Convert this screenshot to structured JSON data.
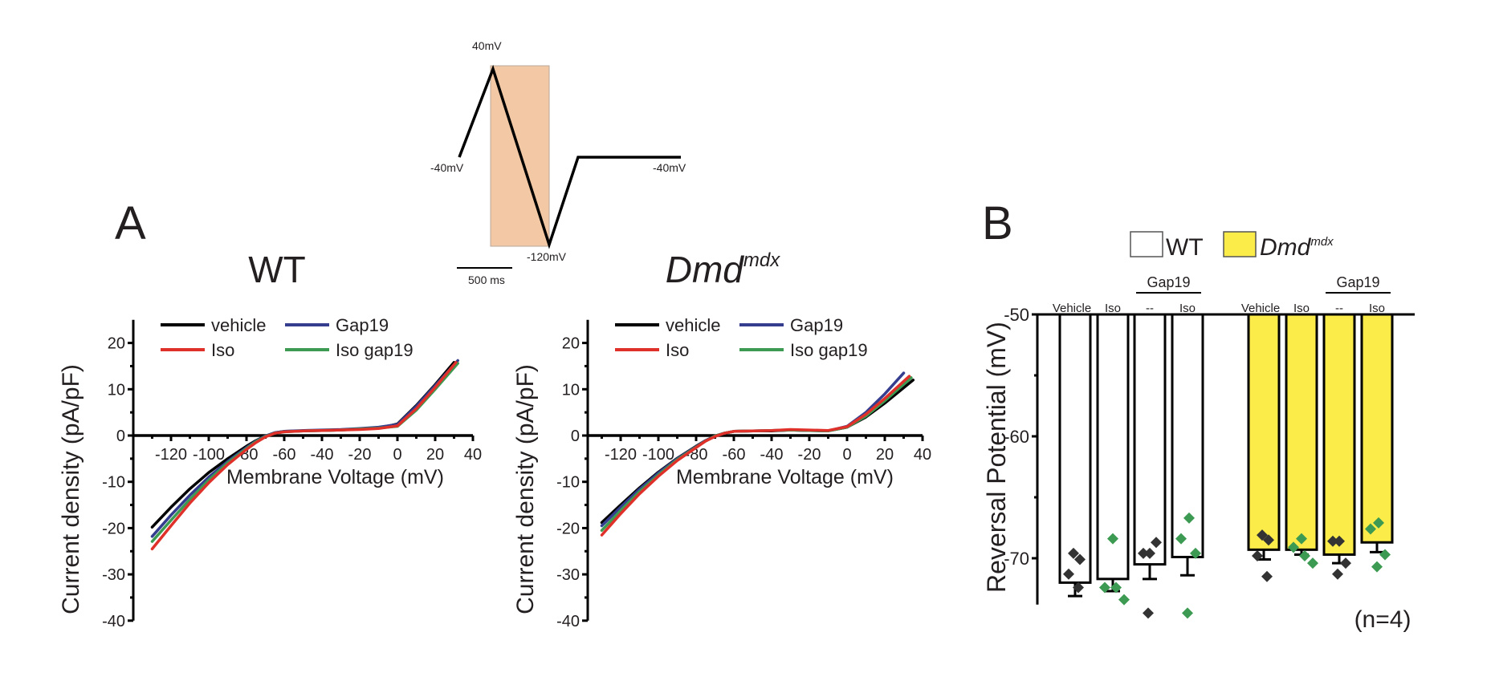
{
  "figure": {
    "panel_labels": {
      "a": "A",
      "b": "B"
    },
    "protocol": {
      "label_peak": "40mV",
      "label_start": "-40mV",
      "label_end": "-40mV",
      "label_trough": "-120mV",
      "scale_bar": "500 ms",
      "highlight_color": "#f2c9a4",
      "voltage_sequence_mV": [
        -40,
        40,
        -120,
        -40,
        -40
      ]
    }
  },
  "chart_data": [
    {
      "id": "iv_wt",
      "type": "line",
      "title": "WT",
      "xlabel": "Membrane Voltage (mV)",
      "ylabel": "Current density (pA/pF)",
      "xlim": [
        -130,
        40
      ],
      "ylim": [
        -40,
        25
      ],
      "xticks": [
        -120,
        -100,
        -80,
        -60,
        -40,
        -20,
        0,
        20,
        40
      ],
      "yticks": [
        20,
        10,
        0,
        -10,
        -20,
        -30,
        -40
      ],
      "legend": "top",
      "grid": false,
      "series": [
        {
          "name": "vehicle",
          "color": "#000000",
          "x": [
            -130,
            -120,
            -110,
            -100,
            -90,
            -80,
            -75,
            -70,
            -65,
            -60,
            -50,
            -40,
            -30,
            -20,
            -10,
            0,
            10,
            20,
            30
          ],
          "y": [
            -19.8,
            -15.5,
            -11.5,
            -8.0,
            -5.0,
            -2.3,
            -1.1,
            -0.1,
            0.6,
            0.9,
            1.0,
            1.1,
            1.2,
            1.4,
            1.6,
            2.5,
            6.5,
            11.0,
            15.8
          ]
        },
        {
          "name": "Gap19",
          "color": "#353d8f",
          "x": [
            -130,
            -120,
            -110,
            -100,
            -90,
            -80,
            -75,
            -70,
            -65,
            -60,
            -50,
            -40,
            -30,
            -20,
            -10,
            0,
            10,
            20,
            32
          ],
          "y": [
            -21.8,
            -17.2,
            -12.9,
            -9.0,
            -5.6,
            -2.6,
            -1.2,
            -0.1,
            0.6,
            0.9,
            1.1,
            1.2,
            1.3,
            1.5,
            1.8,
            2.4,
            6.3,
            10.8,
            16.2
          ]
        },
        {
          "name": "Iso",
          "color": "#e0302a",
          "x": [
            -130,
            -120,
            -110,
            -100,
            -90,
            -80,
            -75,
            -70,
            -65,
            -60,
            -50,
            -40,
            -30,
            -20,
            -10,
            0,
            10,
            20,
            31
          ],
          "y": [
            -24.5,
            -19.5,
            -14.6,
            -10.2,
            -6.3,
            -3.0,
            -1.5,
            -0.3,
            0.5,
            0.8,
            1.0,
            1.1,
            1.2,
            1.3,
            1.5,
            2.1,
            5.8,
            10.4,
            15.8
          ]
        },
        {
          "name": "Iso gap19",
          "color": "#3c9a52",
          "x": [
            -130,
            -120,
            -110,
            -100,
            -90,
            -80,
            -75,
            -70,
            -65,
            -60,
            -50,
            -40,
            -30,
            -20,
            -10,
            0,
            10,
            20,
            32
          ],
          "y": [
            -22.9,
            -18.3,
            -13.8,
            -9.6,
            -5.9,
            -2.8,
            -1.3,
            -0.2,
            0.5,
            0.8,
            1.0,
            1.1,
            1.2,
            1.4,
            1.6,
            2.0,
            5.5,
            10.0,
            15.6
          ]
        }
      ]
    },
    {
      "id": "iv_mdx",
      "type": "line",
      "title": "Dmd",
      "title_superscript": "mdx",
      "xlabel": "Membrane Voltage (mV)",
      "ylabel": "Current density (pA/pF)",
      "xlim": [
        -130,
        40
      ],
      "ylim": [
        -40,
        25
      ],
      "xticks": [
        -120,
        -100,
        -80,
        -60,
        -40,
        -20,
        0,
        20,
        40
      ],
      "yticks": [
        20,
        10,
        0,
        -10,
        -20,
        -30,
        -40
      ],
      "legend": "top",
      "grid": false,
      "series": [
        {
          "name": "vehicle",
          "color": "#000000",
          "x": [
            -130,
            -120,
            -110,
            -100,
            -90,
            -80,
            -75,
            -70,
            -65,
            -60,
            -50,
            -40,
            -30,
            -20,
            -10,
            0,
            10,
            20,
            35
          ],
          "y": [
            -18.8,
            -15.0,
            -11.3,
            -7.9,
            -4.9,
            -2.3,
            -1.1,
            -0.1,
            0.5,
            0.9,
            1.0,
            1.0,
            1.2,
            1.1,
            1.0,
            1.8,
            4.0,
            7.0,
            12.0
          ]
        },
        {
          "name": "Gap19",
          "color": "#353d8f",
          "x": [
            -130,
            -120,
            -110,
            -100,
            -90,
            -80,
            -75,
            -70,
            -65,
            -60,
            -50,
            -40,
            -30,
            -20,
            -10,
            0,
            10,
            20,
            30
          ],
          "y": [
            -19.5,
            -15.5,
            -11.6,
            -8.1,
            -5.0,
            -2.4,
            -1.1,
            -0.1,
            0.5,
            0.9,
            1.0,
            1.1,
            1.2,
            1.1,
            1.0,
            2.0,
            5.0,
            9.0,
            13.5
          ]
        },
        {
          "name": "Iso",
          "color": "#e0302a",
          "x": [
            -130,
            -120,
            -110,
            -100,
            -90,
            -80,
            -75,
            -70,
            -65,
            -60,
            -50,
            -40,
            -30,
            -20,
            -10,
            0,
            10,
            20,
            33
          ],
          "y": [
            -21.5,
            -16.9,
            -12.6,
            -8.8,
            -5.4,
            -2.6,
            -1.2,
            -0.2,
            0.5,
            0.9,
            1.0,
            1.1,
            1.3,
            1.2,
            1.1,
            1.9,
            4.6,
            8.0,
            12.8
          ]
        },
        {
          "name": "Iso gap19",
          "color": "#3c9a52",
          "x": [
            -130,
            -120,
            -110,
            -100,
            -90,
            -80,
            -75,
            -70,
            -65,
            -60,
            -50,
            -40,
            -30,
            -20,
            -10,
            0,
            10,
            20,
            34
          ],
          "y": [
            -20.5,
            -16.2,
            -12.1,
            -8.5,
            -5.2,
            -2.5,
            -1.2,
            -0.1,
            0.5,
            0.9,
            1.0,
            1.1,
            1.2,
            1.1,
            1.0,
            1.8,
            4.2,
            7.5,
            12.5
          ]
        }
      ]
    },
    {
      "id": "reversal",
      "type": "bar",
      "ylabel": "Reversal Potential (mV)",
      "ylim": [
        -50,
        -74
      ],
      "yticks": [
        -50,
        -60,
        -70
      ],
      "legend": [
        {
          "label": "WT",
          "color": "#ffffff"
        },
        {
          "label": "Dmd",
          "superscript": "mdx",
          "color": "#fbec4a"
        }
      ],
      "group_header": "Gap19",
      "n_label": "(n=4)",
      "categories": [
        "Vehicle",
        "Iso",
        "--",
        "Iso",
        "Vehicle",
        "Iso",
        "--",
        "Iso"
      ],
      "category_colors": [
        "#231f20",
        "#3c9a52",
        "#231f20",
        "#3c9a52",
        "#231f20",
        "#3c9a52",
        "#231f20",
        "#3c9a52"
      ],
      "series": [
        {
          "name": "WT",
          "fill": "#ffffff",
          "values": [
            -72.0,
            -71.7,
            -70.5,
            -69.9
          ],
          "errors": [
            1.1,
            1.0,
            1.2,
            1.5
          ],
          "points": [
            [
              -69.6,
              -70.1,
              -71.3,
              -72.4
            ],
            [
              -68.4,
              -72.4,
              -72.4,
              -73.4
            ],
            [
              -69.6,
              -69.6,
              -68.7,
              -74.5
            ],
            [
              -66.7,
              -68.4,
              -69.6,
              -74.5
            ]
          ],
          "point_colors": [
            "#333333",
            "#3c9a52",
            "#333333",
            "#3c9a52"
          ]
        },
        {
          "name": "Dmd mdx",
          "fill": "#fbec4a",
          "values": [
            -69.3,
            -69.3,
            -69.7,
            -68.7
          ],
          "errors": [
            0.8,
            0.4,
            0.7,
            0.8
          ],
          "points": [
            [
              -68.1,
              -68.5,
              -69.8,
              -71.5
            ],
            [
              -68.4,
              -69.1,
              -69.8,
              -70.4
            ],
            [
              -68.6,
              -68.6,
              -70.4,
              -71.3
            ],
            [
              -67.1,
              -67.6,
              -69.7,
              -70.7
            ]
          ],
          "point_colors": [
            "#333333",
            "#3c9a52",
            "#333333",
            "#3c9a52"
          ]
        }
      ]
    }
  ]
}
